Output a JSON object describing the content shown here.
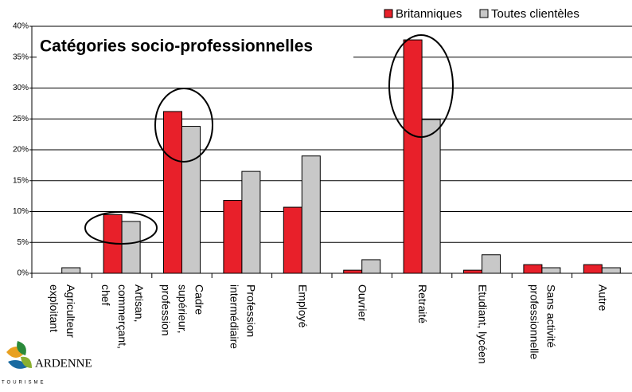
{
  "chart_data": {
    "type": "bar",
    "title": "Catégories socio-professionnelles",
    "categories": [
      "Agriculteur\nexploitant",
      "Artisan,\ncommerçant,\nchef",
      "Cadre\nsupérieur,\nprofession",
      "Profession\nintermédiaire",
      "Employé",
      "Ouvrier",
      "Retraité",
      "Etudiant, lycéen",
      "Sans activité\nprofessionnelle",
      "Autre"
    ],
    "series": [
      {
        "name": "Britanniques",
        "color": "#e8202a",
        "values": [
          0,
          9.5,
          26.2,
          11.8,
          10.7,
          0.5,
          37.8,
          0.5,
          1.4,
          1.4
        ]
      },
      {
        "name": "Toutes clientèles",
        "color": "#c8c8c8",
        "values": [
          0.9,
          8.4,
          23.8,
          16.5,
          19,
          2.2,
          24.9,
          3,
          0.9,
          0.9
        ]
      }
    ],
    "ylim": [
      0,
      40
    ],
    "yticks": [
      {
        "value": 0,
        "label": "0%"
      },
      {
        "value": 5,
        "label": "5%"
      },
      {
        "value": 10,
        "label": "10%"
      },
      {
        "value": 15,
        "label": "15%"
      },
      {
        "value": 20,
        "label": "20%"
      },
      {
        "value": 25,
        "label": "25%"
      },
      {
        "value": 30,
        "label": "30%"
      },
      {
        "value": 35,
        "label": "35%"
      },
      {
        "value": 40,
        "label": "40%"
      }
    ],
    "grid": true,
    "legend": "top-right"
  },
  "logo": {
    "name": "ARDENNE",
    "sub": "TOURISME"
  }
}
